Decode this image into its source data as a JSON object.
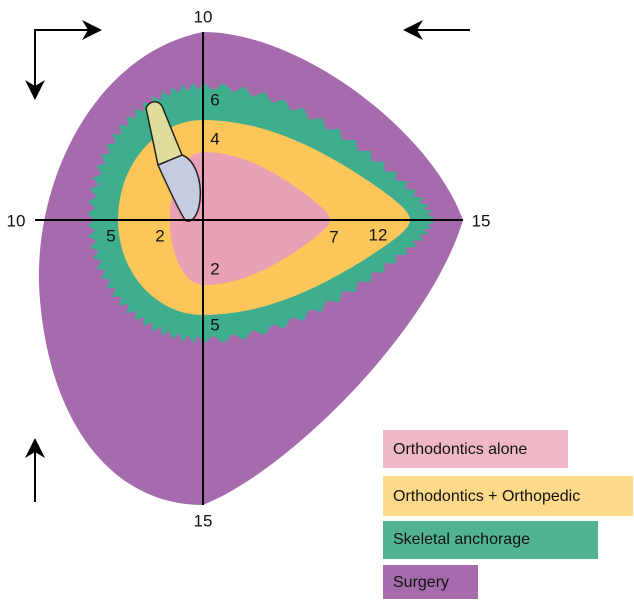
{
  "axis_labels": {
    "top": "10",
    "bottom": "15",
    "left": "10",
    "right": "15"
  },
  "zone_labels": {
    "top_outer": "6",
    "top_inner": "4",
    "left_outer": "5",
    "left_inner": "2",
    "bottom_inner": "2",
    "bottom_outer": "5",
    "right_inner": "7",
    "right_outer": "12"
  },
  "legend": [
    "Orthodontics alone",
    "Orthodontics + Orthopedic",
    "Skeletal anchorage",
    "Surgery"
  ]
}
